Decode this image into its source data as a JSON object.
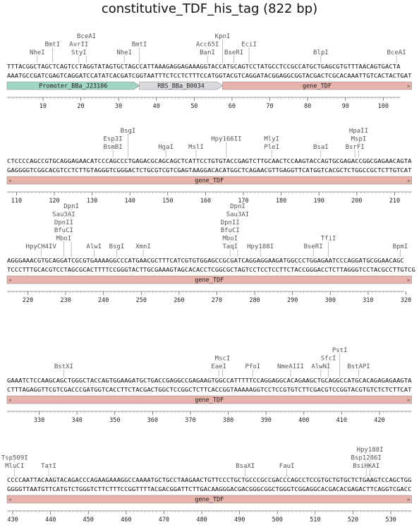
{
  "title": "constitutive_TDF_his_tag (822 bp)",
  "colors": {
    "promoter": "#9fd6c2",
    "rbs": "#d9d9de",
    "gene": "#e7b3aa",
    "site_line": "#999999",
    "site_text": "#555555",
    "seq_text": "#111111"
  },
  "rows": [
    {
      "start": 1,
      "top": "TTTACGGCTAGCTCAGTCCTAGGTATAGTGCTAGCCATTAAAGAGGAGAAAGGTACCATGCAGTCCTATGCCTCCGCCATGCTGAGCGTGTTTAACAGTGACTA",
      "bottom": "AAATGCCGATCGAGTCAGGATCCATATCACGATCGGTAATTTCTCCTCTTTCCATGGTACGTCAGGATACGGAGGCGGTACGACTCGCACAAATTGTCACTACTGAT",
      "features": [
        {
          "label": "Promoter_BBa_J23106",
          "start": 1,
          "end": 35,
          "type": "promoter",
          "cont_left": false,
          "cont_right": false
        },
        {
          "label": "RBS_BBa_B0034",
          "start": 36,
          "end": 57,
          "type": "rbs",
          "cont_left": false,
          "cont_right": false
        },
        {
          "label": "gene_TDF",
          "start": 58,
          "end": 107,
          "type": "gene",
          "cont_left": false,
          "cont_right": true
        }
      ],
      "ticks": [
        10,
        20,
        30,
        40,
        50,
        60,
        70,
        80,
        90,
        100
      ],
      "sites": [
        {
          "name": "NheI",
          "pos": 9,
          "level": 0
        },
        {
          "name": "BmtI",
          "pos": 13,
          "level": 1
        },
        {
          "name": "StyI",
          "pos": 20,
          "level": 0
        },
        {
          "name": "AvrII",
          "pos": 20,
          "level": 1
        },
        {
          "name": "BceAI",
          "pos": 22,
          "level": 2
        },
        {
          "name": "NheI",
          "pos": 32,
          "level": 0
        },
        {
          "name": "BmtI",
          "pos": 36,
          "level": 1
        },
        {
          "name": "BanI",
          "pos": 54,
          "level": 0
        },
        {
          "name": "Acc65I",
          "pos": 54,
          "level": 1
        },
        {
          "name": "KpnI",
          "pos": 58,
          "level": 2
        },
        {
          "name": "BseRI",
          "pos": 61,
          "level": 0
        },
        {
          "name": "EciI",
          "pos": 65,
          "level": 1
        },
        {
          "name": "BlpI",
          "pos": 84,
          "level": 0
        },
        {
          "name": "BceAI",
          "pos": 104,
          "level": 0
        }
      ]
    },
    {
      "start": 108,
      "top": "CTCCCCAGCCGTGCAGGAGAACATCCCAGCCCTGAGACGCAGCAGCTCATTCCTGTGTACCGAGTCTTGCAACTCCAAGTACCAGTGCGAGACCGGCGAGAACAGTA",
      "bottom": "GAGGGGTCGGCACGTCCTCTTGTAGGGTCGGGACTCTGCGTCGTCGAGTAAGGACACATGGCTCAGAACGTTGAGGTTCATGGTCACGCTCTGGCCGCTCTTGTCAT",
      "features": [
        {
          "label": "gene_TDF",
          "start": 108,
          "end": 214,
          "type": "gene",
          "cont_left": true,
          "cont_right": true
        }
      ],
      "ticks": [
        110,
        120,
        130,
        140,
        150,
        160,
        170,
        180,
        190,
        200,
        210
      ],
      "sites": [
        {
          "name": "BsmBI",
          "pos": 136,
          "level": 0
        },
        {
          "name": "Esp3I",
          "pos": 136,
          "level": 1
        },
        {
          "name": "BsgI",
          "pos": 140,
          "level": 2
        },
        {
          "name": "HgaI",
          "pos": 150,
          "level": 0
        },
        {
          "name": "MslI",
          "pos": 158,
          "level": 0
        },
        {
          "name": "Hpy166II",
          "pos": 166,
          "level": 1
        },
        {
          "name": "PleI",
          "pos": 178,
          "level": 0
        },
        {
          "name": "MlyI",
          "pos": 178,
          "level": 1
        },
        {
          "name": "BsaI",
          "pos": 191,
          "level": 0
        },
        {
          "name": "BsrFI",
          "pos": 200,
          "level": 0
        },
        {
          "name": "MspI",
          "pos": 201,
          "level": 1
        },
        {
          "name": "HpaII",
          "pos": 201,
          "level": 2
        }
      ]
    },
    {
      "start": 215,
      "top": "AGGGAAACGTGCAGGATCGCGTGAAAAGGCCCATGAACGCTTTCATCGTGTGGAGCCGCGATCAGGAGGAAGATGGCCCTGGAGAATCCCAGGATGCGGAACAGC",
      "bottom": "TCCCTTTGCACGTCCTAGCGCACTTTTCCGGGTACTTGCGAAAGTAGCACACCTCGGCGCTAGTCCTCCTCCTTCTACCGGGACCTCTTAGGGTCCTACGCCTTGTCG",
      "features": [
        {
          "label": "gene_TDF",
          "start": 215,
          "end": 321,
          "type": "gene",
          "cont_left": true,
          "cont_right": true
        }
      ],
      "ticks": [
        220,
        230,
        240,
        250,
        260,
        270,
        280,
        290,
        300,
        310,
        320
      ],
      "sites": [
        {
          "name": "HpyCH4IV",
          "pos": 224,
          "level": 0
        },
        {
          "name": "MboI",
          "pos": 230,
          "level": 1
        },
        {
          "name": "BfuCI",
          "pos": 230,
          "level": 2
        },
        {
          "name": "DpnII",
          "pos": 230,
          "level": 3
        },
        {
          "name": "Sau3AI",
          "pos": 230,
          "level": 4
        },
        {
          "name": "DpnI",
          "pos": 232,
          "level": 5
        },
        {
          "name": "AlwI",
          "pos": 238,
          "level": 0
        },
        {
          "name": "BsgI",
          "pos": 244,
          "level": 0
        },
        {
          "name": "XmnI",
          "pos": 251,
          "level": 0
        },
        {
          "name": "TaqI",
          "pos": 274,
          "level": 0
        },
        {
          "name": "MboI",
          "pos": 274,
          "level": 1
        },
        {
          "name": "BfuCI",
          "pos": 274,
          "level": 2
        },
        {
          "name": "DpnII",
          "pos": 274,
          "level": 3
        },
        {
          "name": "Sau3AI",
          "pos": 276,
          "level": 4
        },
        {
          "name": "DpnI",
          "pos": 276,
          "level": 5
        },
        {
          "name": "Hpy188I",
          "pos": 282,
          "level": 0
        },
        {
          "name": "BseRI",
          "pos": 296,
          "level": 0
        },
        {
          "name": "TfiI",
          "pos": 300,
          "level": 1
        },
        {
          "name": "BpmI",
          "pos": 319,
          "level": 0
        }
      ]
    },
    {
      "start": 322,
      "top": "GAAATCTCCAAGCAGCTGGGCTACCAGTGGAAGATGCTGACCGAGGCCGAGAAGTGGCCATTTTTCCAGGAGGCACAGAAGCTGCAGGCCATGCACAGAGAGAAGTA",
      "bottom": "CTTTAGAGGTTCGTCGACCCGATGGTCACCTTCTACGACTGGCTCCGGCTCTTCACCGGTAAAAAGGTCCTCCGTGTCTTCGACGTCCGGTACGTGTCTCTCTTCAT",
      "features": [
        {
          "label": "gene_TDF",
          "start": 322,
          "end": 428,
          "type": "gene",
          "cont_left": true,
          "cont_right": true
        }
      ],
      "ticks": [
        330,
        340,
        350,
        360,
        370,
        380,
        390,
        400,
        410,
        420
      ],
      "sites": [
        {
          "name": "BstXI",
          "pos": 337,
          "level": 0
        },
        {
          "name": "EaeI",
          "pos": 378,
          "level": 0
        },
        {
          "name": "MscI",
          "pos": 379,
          "level": 1
        },
        {
          "name": "PfoI",
          "pos": 387,
          "level": 0
        },
        {
          "name": "NmeAIII",
          "pos": 397,
          "level": 0
        },
        {
          "name": "AlwNI",
          "pos": 405,
          "level": 0
        },
        {
          "name": "SfcI",
          "pos": 407,
          "level": 1
        },
        {
          "name": "PstI",
          "pos": 410,
          "level": 2
        },
        {
          "name": "BstAPI",
          "pos": 415,
          "level": 0
        }
      ]
    },
    {
      "start": 429,
      "top": "CCCCAATTACAAGTACAGACCCAGAAGAAAGGCCAAAATGCTGCCTAAGAACTGTTCCCTGCTGCCCGCCGACCCAGCCTCCGTGCTGTGCTCTGAAGTCCAGCTGG",
      "bottom": "GGGGTTAATGTTCATGTCTGGGTCTTCTTTCCGGTTTTACGACGGATTCTTGACAAGGGACGACGGGCGGCTGGGTCGGAGGCACGACACGAGACTTCAGGTCGACC",
      "features": [
        {
          "label": "gene_TDF",
          "start": 429,
          "end": 535,
          "type": "gene",
          "cont_left": true,
          "cont_right": true
        }
      ],
      "ticks": [
        430,
        440,
        450,
        460,
        470,
        480,
        490,
        500,
        510,
        520,
        530
      ],
      "sites": [
        {
          "name": "MluCI",
          "pos": 431,
          "level": 0
        },
        {
          "name": "Tsp509I",
          "pos": 431,
          "level": 1
        },
        {
          "name": "TatI",
          "pos": 440,
          "level": 0
        },
        {
          "name": "BsaXI",
          "pos": 492,
          "level": 0
        },
        {
          "name": "FauI",
          "pos": 503,
          "level": 0
        },
        {
          "name": "BsiHKAI",
          "pos": 524,
          "level": 0
        },
        {
          "name": "Bsp1286I",
          "pos": 524,
          "level": 1
        },
        {
          "name": "Hpy188I",
          "pos": 525,
          "level": 2
        }
      ]
    }
  ]
}
